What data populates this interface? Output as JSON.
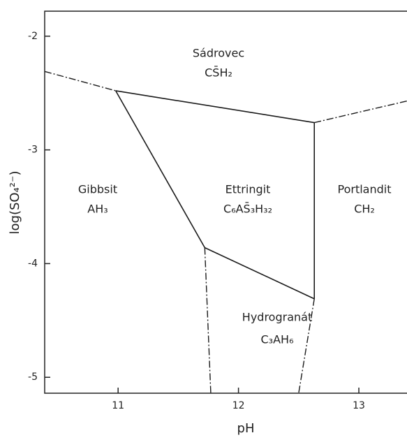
{
  "chart_data": {
    "type": "line",
    "x_label": "pH",
    "y_label": "log(SO₄²⁻)",
    "xlim": [
      10.39,
      13.4
    ],
    "ylim": [
      -5.14,
      -1.78
    ],
    "xticks": [
      11,
      12,
      13
    ],
    "yticks": [
      -2,
      -3,
      -4,
      -5
    ],
    "color": "#1a1a1a",
    "lines": [
      {
        "x": [
          10.39,
          10.98
        ],
        "values": [
          -2.31,
          -2.48
        ],
        "style": "dashdot"
      },
      {
        "x": [
          10.98,
          12.63
        ],
        "values": [
          -2.48,
          -2.76
        ],
        "style": "solid"
      },
      {
        "x": [
          12.63,
          13.4
        ],
        "values": [
          -2.76,
          -2.57
        ],
        "style": "dashdot"
      },
      {
        "x": [
          10.98,
          11.72
        ],
        "values": [
          -2.48,
          -3.86
        ],
        "style": "solid"
      },
      {
        "x": [
          11.72,
          12.63
        ],
        "values": [
          -3.86,
          -4.31
        ],
        "style": "solid"
      },
      {
        "x": [
          12.63,
          12.63
        ],
        "values": [
          -2.76,
          -4.31
        ],
        "style": "solid"
      },
      {
        "x": [
          11.72,
          11.77
        ],
        "values": [
          -3.86,
          -5.14
        ],
        "style": "dashdot"
      },
      {
        "x": [
          12.63,
          12.5
        ],
        "values": [
          -4.31,
          -5.14
        ],
        "style": "dashdot"
      }
    ],
    "annotations": [
      "Sádrovec",
      "CS̄H₂",
      "Gibbsit",
      "AH₃",
      "Ettringit",
      "C₆AS̄₃H₃₂",
      "Portlandit",
      "CH₂",
      "Hydrogranát",
      "C₃AH₆"
    ]
  }
}
